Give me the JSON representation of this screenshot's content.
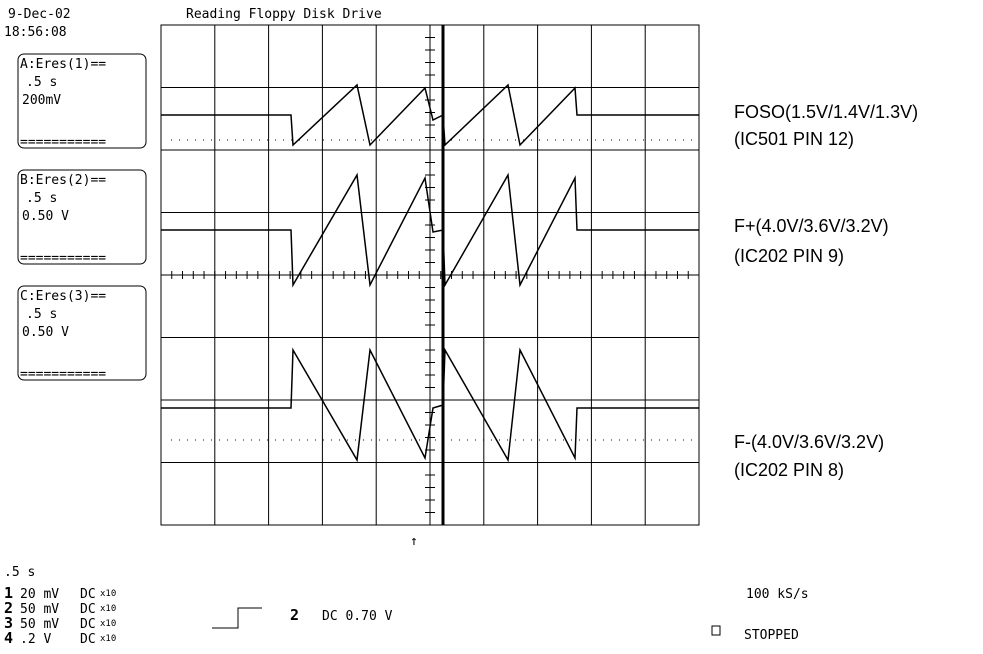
{
  "header": {
    "date": "9-Dec-02",
    "time": "18:56:08",
    "title": "Reading Floppy Disk Drive"
  },
  "channels": [
    {
      "label": "A:Eres(1)==",
      "time": ".5 s",
      "scale": "200mV",
      "rule": "==========="
    },
    {
      "label": "B:Eres(2)==",
      "time": ".5 s",
      "scale": "0.50 V",
      "rule": "==========="
    },
    {
      "label": "C:Eres(3)==",
      "time": ".5 s",
      "scale": "0.50 V",
      "rule": "==========="
    }
  ],
  "annotations": [
    {
      "line1": "FOSO(1.5V/1.4V/1.3V)",
      "line2": "(IC501 PIN 12)"
    },
    {
      "line1": "F+(4.0V/3.6V/3.2V)",
      "line2": "(IC202 PIN 9)"
    },
    {
      "line1": "F-(4.0V/3.6V/3.2V)",
      "line2": "(IC202 PIN 8)"
    }
  ],
  "timebase": ".5  s",
  "inputs": [
    {
      "ch": "1",
      "scale": "20 mV",
      "coupling": "DC",
      "probe": "x10"
    },
    {
      "ch": "2",
      "scale": "50 mV",
      "coupling": "DC",
      "probe": "x10"
    },
    {
      "ch": "3",
      "scale": "50 mV",
      "coupling": "DC",
      "probe": "x10"
    },
    {
      "ch": "4",
      "scale": ".2  V",
      "coupling": "DC",
      "probe": "x10"
    }
  ],
  "trigger": {
    "ch": "2",
    "level": "DC 0.70 V"
  },
  "sample_rate": "100 kS/s",
  "status": "STOPPED"
}
